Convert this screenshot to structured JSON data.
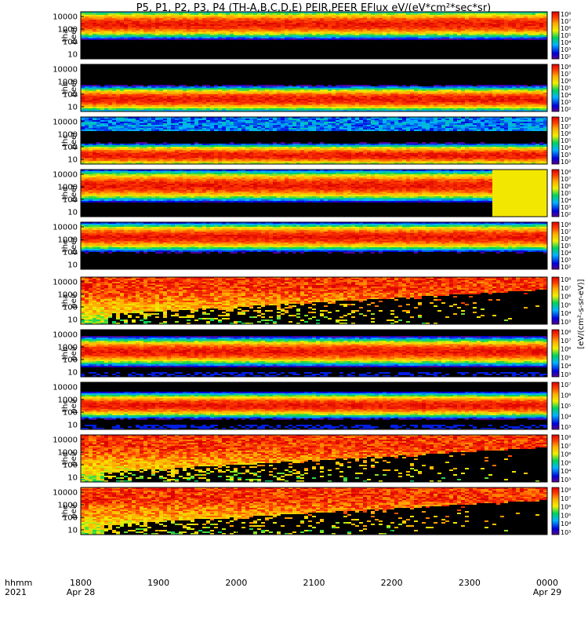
{
  "chart_data": {
    "type": "heatmap",
    "title": "P5, P1, P2, P3, P4 (TH-A,B,C,D,E) PEIR,PEER EFlux eV/(eV*cm²*sec*sr)",
    "ytick_labels": [
      "10",
      "100",
      "1000",
      "10000"
    ],
    "x_label_top": "hhmm",
    "x_label_bottom": "2021",
    "xticks": [
      {
        "label": "1800",
        "sub": "Apr 28",
        "t": 0
      },
      {
        "label": "1900",
        "sub": "",
        "t": 60
      },
      {
        "label": "2000",
        "sub": "",
        "t": 120
      },
      {
        "label": "2100",
        "sub": "",
        "t": 180
      },
      {
        "label": "2200",
        "sub": "",
        "t": 240
      },
      {
        "label": "2300",
        "sub": "",
        "t": 300
      },
      {
        "label": "0000",
        "sub": "Apr 29",
        "t": 360
      }
    ],
    "colorbar_title": "[eV/(cm²-s-sr-eV)]",
    "colorbar_scales": {
      "peer": [
        "10²",
        "10³",
        "10⁴",
        "10⁵",
        "10⁶",
        "10⁷",
        "10⁸"
      ],
      "peir": [
        "10³",
        "10⁴",
        "10⁵",
        "10⁶",
        "10⁷",
        "10⁸"
      ],
      "peir_c": [
        "10³",
        "10⁴",
        "10⁵",
        "10⁶",
        "10⁷"
      ]
    },
    "panels": [
      {
        "probe": "tha",
        "species": "peer",
        "scale": "peer",
        "band": [
          0.55,
          0.95
        ],
        "style": "electron"
      },
      {
        "probe": "thb",
        "species": "peer",
        "scale": "peer",
        "band": [
          0.1,
          0.45
        ],
        "style": "electron_b"
      },
      {
        "probe": "thc",
        "species": "peer",
        "scale": "peer",
        "band": [
          0.05,
          0.35
        ],
        "style": "electron_c"
      },
      {
        "probe": "thd",
        "species": "peer",
        "scale": "peer",
        "band": [
          0.45,
          0.9
        ],
        "style": "electron_d"
      },
      {
        "probe": "the",
        "species": "peer",
        "scale": "peer",
        "band": [
          0.5,
          0.9
        ],
        "style": "electron"
      },
      {
        "probe": "tha",
        "species": "peir",
        "scale": "peir",
        "band": [
          0.7,
          1.0
        ],
        "style": "ion_plasma"
      },
      {
        "probe": "thb",
        "species": "peir",
        "scale": "peir",
        "band": [
          0.35,
          0.75
        ],
        "style": "ion_band"
      },
      {
        "probe": "thc",
        "species": "peir",
        "scale": "peir_c",
        "band": [
          0.35,
          0.7
        ],
        "style": "ion_band"
      },
      {
        "probe": "thd",
        "species": "peir",
        "scale": "peir",
        "band": [
          0.7,
          1.0
        ],
        "style": "ion_plasma"
      },
      {
        "probe": "the",
        "species": "peir",
        "scale": "peir",
        "band": [
          0.7,
          1.0
        ],
        "style": "ion_plasma"
      }
    ]
  }
}
